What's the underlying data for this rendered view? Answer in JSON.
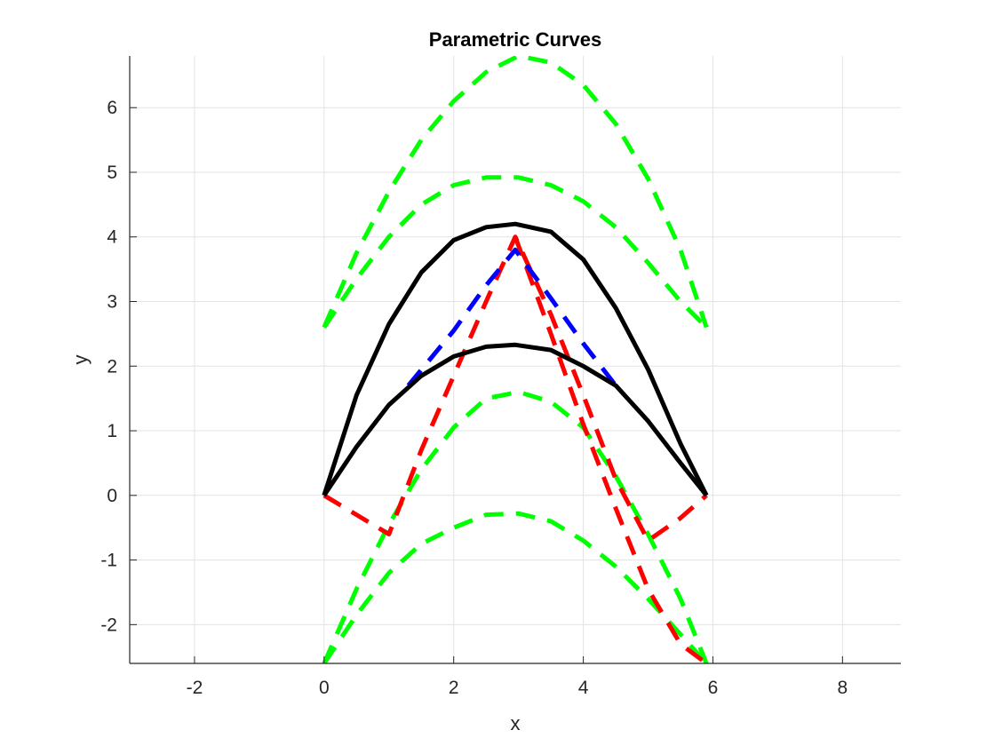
{
  "chart_data": {
    "type": "line",
    "title": "Parametric Curves",
    "xlabel": "x",
    "ylabel": "y",
    "xlim": [
      -3,
      8.9
    ],
    "ylim": [
      -2.6,
      6.8
    ],
    "xticks": [
      -2,
      0,
      2,
      4,
      6,
      8
    ],
    "yticks": [
      -2,
      -1,
      0,
      1,
      2,
      3,
      4,
      5,
      6
    ],
    "grid": true,
    "series": [
      {
        "color": "#00ff00",
        "dashed": true,
        "points": [
          [
            0,
            2.6
          ],
          [
            0.5,
            3.75
          ],
          [
            1,
            4.7
          ],
          [
            1.5,
            5.5
          ],
          [
            2,
            6.1
          ],
          [
            2.5,
            6.55
          ],
          [
            3,
            6.8
          ],
          [
            3.5,
            6.7
          ],
          [
            4,
            6.35
          ],
          [
            4.5,
            5.75
          ],
          [
            5,
            4.9
          ],
          [
            5.5,
            3.8
          ],
          [
            5.9,
            2.6
          ]
        ]
      },
      {
        "color": "#00ff00",
        "dashed": true,
        "points": [
          [
            0,
            2.6
          ],
          [
            0.5,
            3.35
          ],
          [
            1,
            4.0
          ],
          [
            1.5,
            4.5
          ],
          [
            2,
            4.8
          ],
          [
            2.5,
            4.92
          ],
          [
            3,
            4.92
          ],
          [
            3.5,
            4.8
          ],
          [
            4,
            4.55
          ],
          [
            4.5,
            4.15
          ],
          [
            5,
            3.6
          ],
          [
            5.5,
            3.0
          ],
          [
            5.9,
            2.6
          ]
        ]
      },
      {
        "color": "#00ff00",
        "dashed": true,
        "points": [
          [
            0,
            -2.6
          ],
          [
            0.5,
            -1.45
          ],
          [
            1,
            -0.45
          ],
          [
            1.5,
            0.4
          ],
          [
            2,
            1.05
          ],
          [
            2.5,
            1.5
          ],
          [
            3,
            1.6
          ],
          [
            3.5,
            1.45
          ],
          [
            4,
            1.05
          ],
          [
            4.5,
            0.3
          ],
          [
            5,
            -0.6
          ],
          [
            5.5,
            -1.6
          ],
          [
            5.9,
            -2.6
          ]
        ]
      },
      {
        "color": "#00ff00",
        "dashed": true,
        "points": [
          [
            0,
            -2.6
          ],
          [
            0.5,
            -1.85
          ],
          [
            1,
            -1.2
          ],
          [
            1.5,
            -0.75
          ],
          [
            2,
            -0.5
          ],
          [
            2.5,
            -0.3
          ],
          [
            3,
            -0.28
          ],
          [
            3.5,
            -0.4
          ],
          [
            4,
            -0.7
          ],
          [
            4.5,
            -1.1
          ],
          [
            5,
            -1.6
          ],
          [
            5.5,
            -2.15
          ],
          [
            5.9,
            -2.6
          ]
        ]
      },
      {
        "color": "#ff0000",
        "dashed": true,
        "points": [
          [
            0,
            0
          ],
          [
            1,
            -0.6
          ],
          [
            1.5,
            0.7
          ],
          [
            2,
            1.85
          ],
          [
            2.5,
            3.0
          ],
          [
            2.95,
            4.0
          ],
          [
            3.5,
            2.8
          ],
          [
            4,
            1.55
          ],
          [
            4.5,
            0.25
          ],
          [
            5,
            -0.7
          ],
          [
            5.5,
            -0.35
          ],
          [
            5.9,
            0
          ]
        ]
      },
      {
        "color": "#ff0000",
        "dashed": true,
        "points": [
          [
            2.95,
            4.0
          ],
          [
            3.5,
            2.5
          ],
          [
            4,
            1.1
          ],
          [
            4.5,
            -0.2
          ],
          [
            5,
            -1.45
          ],
          [
            5.5,
            -2.3
          ],
          [
            5.9,
            -2.6
          ]
        ]
      },
      {
        "color": "#0000ff",
        "dashed": true,
        "points": [
          [
            1.3,
            1.7
          ],
          [
            2,
            2.55
          ],
          [
            2.5,
            3.25
          ],
          [
            2.95,
            3.8
          ],
          [
            3.5,
            3.05
          ],
          [
            4,
            2.35
          ],
          [
            4.5,
            1.7
          ]
        ]
      },
      {
        "color": "#000000",
        "dashed": false,
        "points": [
          [
            0,
            0
          ],
          [
            0.5,
            1.55
          ],
          [
            1,
            2.65
          ],
          [
            1.5,
            3.45
          ],
          [
            2,
            3.95
          ],
          [
            2.5,
            4.15
          ],
          [
            2.95,
            4.2
          ],
          [
            3.5,
            4.08
          ],
          [
            4,
            3.65
          ],
          [
            4.5,
            2.9
          ],
          [
            5,
            1.95
          ],
          [
            5.5,
            0.8
          ],
          [
            5.9,
            0
          ]
        ]
      },
      {
        "color": "#000000",
        "dashed": false,
        "points": [
          [
            0,
            0
          ],
          [
            0.5,
            0.75
          ],
          [
            1,
            1.4
          ],
          [
            1.5,
            1.85
          ],
          [
            2,
            2.15
          ],
          [
            2.5,
            2.3
          ],
          [
            2.95,
            2.33
          ],
          [
            3.5,
            2.25
          ],
          [
            4,
            2.0
          ],
          [
            4.5,
            1.7
          ],
          [
            5,
            1.15
          ],
          [
            5.5,
            0.5
          ],
          [
            5.9,
            0
          ]
        ]
      }
    ]
  }
}
